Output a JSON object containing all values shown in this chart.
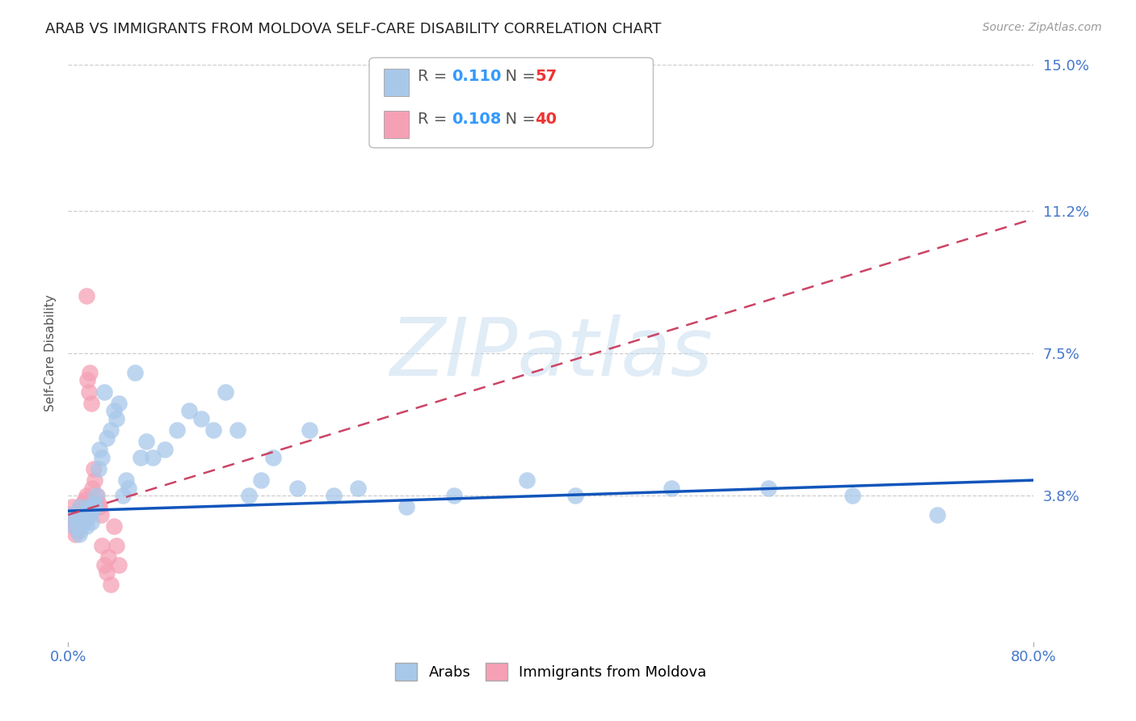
{
  "title": "ARAB VS IMMIGRANTS FROM MOLDOVA SELF-CARE DISABILITY CORRELATION CHART",
  "source": "Source: ZipAtlas.com",
  "ylabel": "Self-Care Disability",
  "xlim": [
    0.0,
    0.8
  ],
  "ylim": [
    0.0,
    0.15
  ],
  "yticks": [
    0.038,
    0.075,
    0.112,
    0.15
  ],
  "ytick_labels": [
    "3.8%",
    "7.5%",
    "11.2%",
    "15.0%"
  ],
  "xticks": [
    0.0,
    0.8
  ],
  "xtick_labels": [
    "0.0%",
    "80.0%"
  ],
  "grid_color": "#cccccc",
  "background_color": "#ffffff",
  "arab_color": "#a8c8ea",
  "moldova_color": "#f5a0b5",
  "arab_line_color": "#1155bb",
  "moldova_line_color": "#cc4466",
  "legend_R_arab": "0.110",
  "legend_N_arab": "57",
  "legend_R_moldova": "0.108",
  "legend_N_moldova": "40",
  "arab_scatter_x": [
    0.003,
    0.005,
    0.007,
    0.008,
    0.009,
    0.01,
    0.01,
    0.012,
    0.013,
    0.015,
    0.015,
    0.016,
    0.017,
    0.018,
    0.019,
    0.02,
    0.021,
    0.022,
    0.023,
    0.025,
    0.026,
    0.028,
    0.03,
    0.032,
    0.035,
    0.038,
    0.04,
    0.042,
    0.045,
    0.048,
    0.05,
    0.055,
    0.06,
    0.065,
    0.07,
    0.08,
    0.09,
    0.1,
    0.11,
    0.12,
    0.13,
    0.14,
    0.15,
    0.16,
    0.17,
    0.19,
    0.2,
    0.22,
    0.24,
    0.28,
    0.32,
    0.38,
    0.42,
    0.5,
    0.58,
    0.65,
    0.72
  ],
  "arab_scatter_y": [
    0.033,
    0.03,
    0.031,
    0.032,
    0.028,
    0.029,
    0.035,
    0.031,
    0.033,
    0.03,
    0.034,
    0.032,
    0.035,
    0.033,
    0.031,
    0.034,
    0.036,
    0.035,
    0.038,
    0.045,
    0.05,
    0.048,
    0.065,
    0.053,
    0.055,
    0.06,
    0.058,
    0.062,
    0.038,
    0.042,
    0.04,
    0.07,
    0.048,
    0.052,
    0.048,
    0.05,
    0.055,
    0.06,
    0.058,
    0.055,
    0.065,
    0.055,
    0.038,
    0.042,
    0.048,
    0.04,
    0.055,
    0.038,
    0.04,
    0.035,
    0.038,
    0.042,
    0.038,
    0.04,
    0.04,
    0.038,
    0.033
  ],
  "moldova_scatter_x": [
    0.002,
    0.003,
    0.004,
    0.005,
    0.005,
    0.006,
    0.006,
    0.007,
    0.007,
    0.008,
    0.008,
    0.009,
    0.009,
    0.01,
    0.01,
    0.011,
    0.012,
    0.013,
    0.014,
    0.015,
    0.015,
    0.016,
    0.017,
    0.018,
    0.019,
    0.02,
    0.021,
    0.022,
    0.024,
    0.025,
    0.026,
    0.027,
    0.028,
    0.03,
    0.032,
    0.033,
    0.035,
    0.038,
    0.04,
    0.042
  ],
  "moldova_scatter_y": [
    0.033,
    0.035,
    0.032,
    0.03,
    0.033,
    0.028,
    0.031,
    0.029,
    0.032,
    0.03,
    0.033,
    0.031,
    0.034,
    0.032,
    0.035,
    0.033,
    0.036,
    0.034,
    0.037,
    0.038,
    0.09,
    0.068,
    0.065,
    0.07,
    0.062,
    0.04,
    0.045,
    0.042,
    0.038,
    0.036,
    0.035,
    0.033,
    0.025,
    0.02,
    0.018,
    0.022,
    0.015,
    0.03,
    0.025,
    0.02
  ],
  "arab_line_x0": 0.0,
  "arab_line_y0": 0.034,
  "arab_line_x1": 0.8,
  "arab_line_y1": 0.042,
  "moldova_line_x0": 0.0,
  "moldova_line_y0": 0.033,
  "moldova_line_x1": 0.8,
  "moldova_line_y1": 0.11,
  "watermark_text": "ZIPatlas",
  "title_fontsize": 13,
  "axis_label_fontsize": 11,
  "tick_fontsize": 13,
  "legend_fontsize": 14
}
